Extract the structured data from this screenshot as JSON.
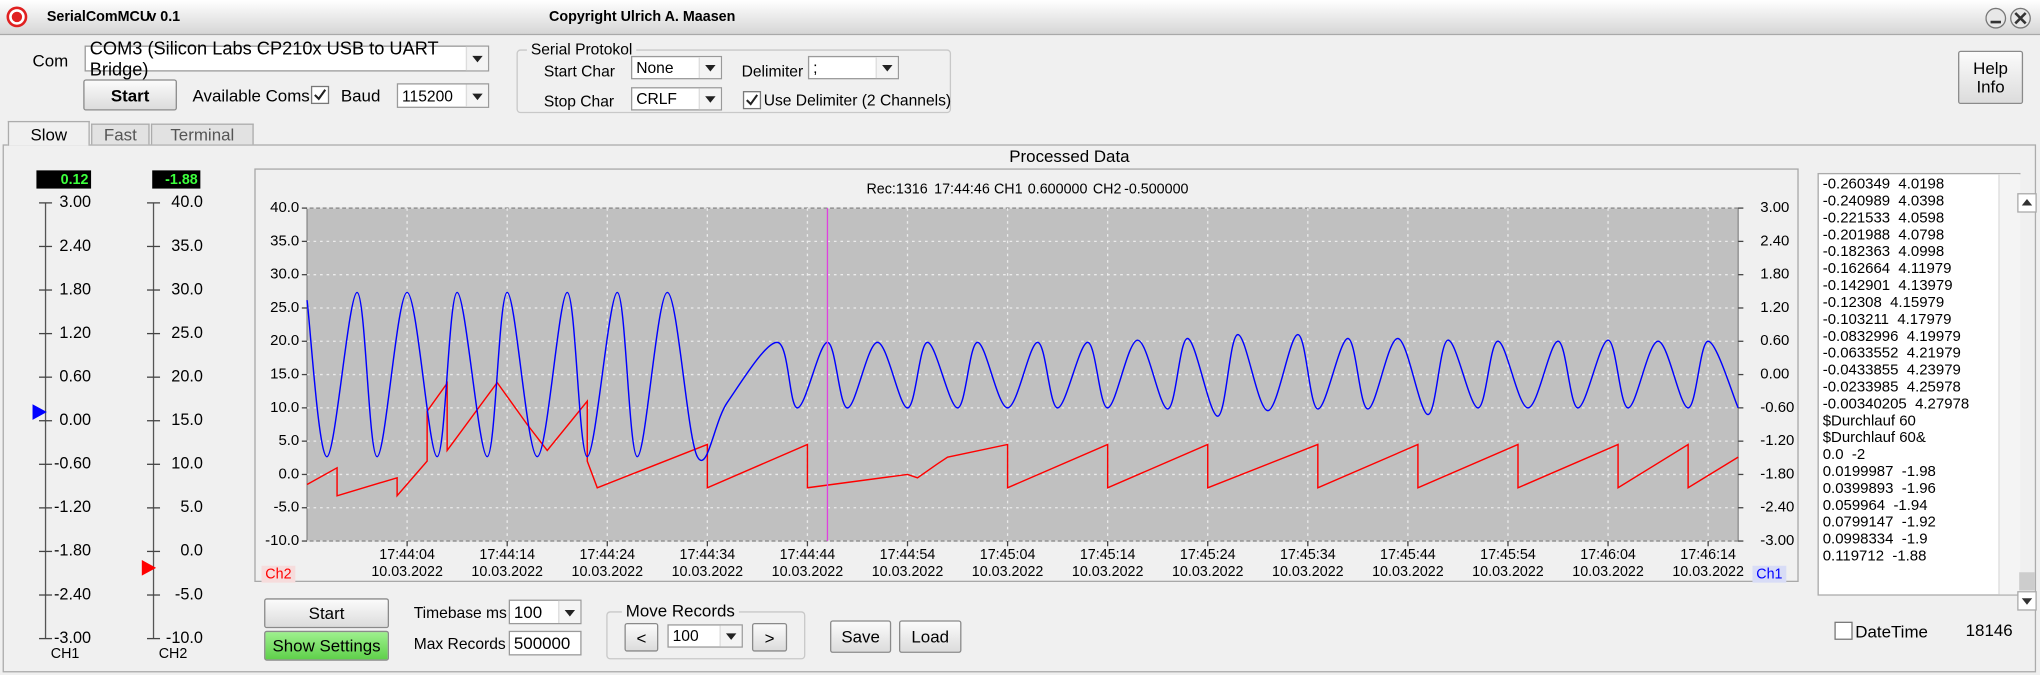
{
  "window": {
    "app": "SerialComMCU",
    "version": "v 0.1",
    "copyright": "Copyright Ulrich A. Maasen"
  },
  "connection": {
    "com_label": "Com",
    "com_port": "COM3 (Silicon Labs CP210x USB to UART Bridge)",
    "start_button": "Start",
    "available_coms": "Available Coms",
    "baud_label": "Baud",
    "baud": "115200"
  },
  "protocol": {
    "group": "Serial Protokol",
    "start_char_label": "Start Char",
    "start_char": "None",
    "stop_char_label": "Stop Char",
    "stop_char": "CRLF",
    "delimiter_label": "Delimiter",
    "delimiter": ";",
    "use_delimiter": "Use Delimiter (2 Channels)"
  },
  "help_button": {
    "line1": "Help",
    "line2": "Info"
  },
  "tabs": [
    "Slow",
    "Fast",
    "Terminal"
  ],
  "gauges": [
    {
      "label": "CH1",
      "readout": 0.12,
      "color": "#0000ff",
      "ylim": [
        -3,
        3
      ],
      "yticks": [
        {
          "value": 3,
          "label": "3.00"
        },
        {
          "value": 2.4,
          "label": "2.40"
        },
        {
          "value": 1.8,
          "label": "1.80"
        },
        {
          "value": 1.2,
          "label": "1.20"
        },
        {
          "value": 0.6,
          "label": "0.60"
        },
        {
          "value": 0,
          "label": "0.00"
        },
        {
          "value": -0.6,
          "label": "-0.60"
        },
        {
          "value": -1.2,
          "label": "-1.20"
        },
        {
          "value": -1.8,
          "label": "-1.80"
        },
        {
          "value": -2.4,
          "label": "-2.40"
        },
        {
          "value": -3,
          "label": "-3.00"
        }
      ]
    },
    {
      "label": "CH2",
      "readout": -1.88,
      "color": "#ff0000",
      "ylim": [
        -10,
        40
      ],
      "yticks": [
        {
          "value": 40,
          "label": "40.0"
        },
        {
          "value": 35,
          "label": "35.0"
        },
        {
          "value": 30,
          "label": "30.0"
        },
        {
          "value": 25,
          "label": "25.0"
        },
        {
          "value": 20,
          "label": "20.0"
        },
        {
          "value": 15,
          "label": "15.0"
        },
        {
          "value": 10,
          "label": "10.0"
        },
        {
          "value": 5,
          "label": "5.0"
        },
        {
          "value": 0,
          "label": "0.0"
        },
        {
          "value": -5,
          "label": "-5.0"
        },
        {
          "value": -10,
          "label": "-10.0"
        }
      ]
    }
  ],
  "chart_data": {
    "type": "line",
    "title": "Processed Data",
    "cursor": {
      "record": "Rec:1316",
      "time": "17:44:46",
      "ch1_label": "CH1",
      "ch1_value": "0.600000",
      "ch2_label": "CH2",
      "ch2_value": "-0.500000",
      "color": "#e040e0"
    },
    "xlim": [
      "17:43:54",
      "17:46:17"
    ],
    "xticks": [
      "17:44:04",
      "17:44:14",
      "17:44:24",
      "17:44:34",
      "17:44:44",
      "17:44:54",
      "17:45:04",
      "17:45:14",
      "17:45:24",
      "17:45:34",
      "17:45:44",
      "17:45:54",
      "17:46:04",
      "17:46:14"
    ],
    "xtick_date": "10.03.2022",
    "ylim": [
      -10,
      40
    ],
    "yticks": [
      {
        "value": 40,
        "label": "40.0"
      },
      {
        "value": 35,
        "label": "35.0"
      },
      {
        "value": 30,
        "label": "30.0"
      },
      {
        "value": 25,
        "label": "25.0"
      },
      {
        "value": 20,
        "label": "20.0"
      },
      {
        "value": 15,
        "label": "15.0"
      },
      {
        "value": 10,
        "label": "10.0"
      },
      {
        "value": 5,
        "label": "5.0"
      },
      {
        "value": 0,
        "label": "0.0"
      },
      {
        "value": -5,
        "label": "-5.0"
      },
      {
        "value": -10,
        "label": "-10.0"
      }
    ],
    "y2lim": [
      -3,
      3
    ],
    "y2ticks": [
      {
        "value": 3,
        "label": "3.00"
      },
      {
        "value": 2.4,
        "label": "2.40"
      },
      {
        "value": 1.8,
        "label": "1.80"
      },
      {
        "value": 1.2,
        "label": "1.20"
      },
      {
        "value": 0.6,
        "label": "0.60"
      },
      {
        "value": 0,
        "label": "0.00"
      },
      {
        "value": -0.6,
        "label": "-0.60"
      },
      {
        "value": -1.2,
        "label": "-1.20"
      },
      {
        "value": -1.8,
        "label": "-1.80"
      },
      {
        "value": -2.4,
        "label": "-2.40"
      },
      {
        "value": -3,
        "label": "-3.00"
      }
    ],
    "grid": true,
    "series": [
      {
        "name": "Ch2",
        "color": "#ff0000",
        "axis": "y",
        "smooth": false,
        "x": [
          "17:43:54",
          "17:43:57",
          "17:43:57",
          "17:44:03",
          "17:44:03",
          "17:44:06",
          "17:44:06",
          "17:44:08",
          "17:44:08",
          "17:44:13",
          "17:44:16",
          "17:44:18",
          "17:44:22",
          "17:44:22",
          "17:44:23",
          "17:44:34",
          "17:44:34",
          "17:44:44",
          "17:44:44",
          "17:44:54",
          "17:44:55",
          "17:44:57",
          "17:44:58",
          "17:45:04",
          "17:45:04",
          "17:45:14",
          "17:45:14",
          "17:45:24",
          "17:45:24",
          "17:45:35",
          "17:45:35",
          "17:45:45",
          "17:45:45",
          "17:45:55",
          "17:45:55",
          "17:46:05",
          "17:46:05",
          "17:46:12",
          "17:46:12",
          "17:46:17"
        ],
        "values": [
          -1.5,
          1.0,
          -3.2,
          -0.5,
          -3.2,
          2.0,
          9.5,
          13.7,
          3.6,
          13.8,
          7.5,
          3.6,
          11.0,
          2.0,
          -2.0,
          4.5,
          -2.0,
          4.5,
          -2.0,
          0.0,
          -0.5,
          1.6,
          2.6,
          4.5,
          -2.0,
          4.5,
          -2.0,
          4.5,
          -2.0,
          4.5,
          -2.0,
          4.5,
          -2.0,
          4.5,
          -2.0,
          4.5,
          -2.0,
          4.5,
          -2.0,
          2.6
        ]
      },
      {
        "name": "Ch1",
        "color": "#0000ff",
        "axis": "y2",
        "smooth": true,
        "x": [
          "17:43:54",
          "17:43:56",
          "17:43:59",
          "17:44:01",
          "17:44:04",
          "17:44:07",
          "17:44:09",
          "17:44:12",
          "17:44:14",
          "17:44:17",
          "17:44:20",
          "17:44:22",
          "17:44:25",
          "17:44:27",
          "17:44:30",
          "17:44:33",
          "17:44:36",
          "17:44:41",
          "17:44:43",
          "17:44:46",
          "17:44:48",
          "17:44:51",
          "17:44:54",
          "17:44:56",
          "17:44:59",
          "17:45:01",
          "17:45:04",
          "17:45:07",
          "17:45:09",
          "17:45:12",
          "17:45:14",
          "17:45:17",
          "17:45:20",
          "17:45:22",
          "17:45:25",
          "17:45:27",
          "17:45:30",
          "17:45:33",
          "17:45:35",
          "17:45:38",
          "17:45:40",
          "17:45:43",
          "17:45:46",
          "17:45:48",
          "17:45:51",
          "17:45:53",
          "17:45:56",
          "17:45:59",
          "17:46:01",
          "17:46:04",
          "17:46:06",
          "17:46:09",
          "17:46:12",
          "17:46:14",
          "17:46:17"
        ],
        "values": [
          1.34,
          -1.48,
          1.48,
          -1.48,
          1.48,
          -1.48,
          1.48,
          -1.48,
          1.48,
          -1.48,
          1.48,
          -1.48,
          1.48,
          -1.48,
          1.48,
          -1.48,
          -0.5,
          0.58,
          -0.6,
          0.58,
          -0.6,
          0.58,
          -0.6,
          0.58,
          -0.6,
          0.58,
          -0.6,
          0.58,
          -0.6,
          0.58,
          -0.6,
          0.62,
          -0.62,
          0.65,
          -0.75,
          0.72,
          -0.65,
          0.72,
          -0.62,
          0.65,
          -0.62,
          0.65,
          -0.72,
          0.62,
          -0.6,
          0.6,
          -0.6,
          0.6,
          -0.6,
          0.62,
          -0.6,
          0.6,
          -0.6,
          0.6,
          -0.6
        ]
      }
    ]
  },
  "controls": {
    "start_button": "Start",
    "show_settings": "Show Settings",
    "timebase_label": "Timebase ms",
    "timebase": "100",
    "max_records_label": "Max Records",
    "max_records": "500000",
    "move_group": "Move Records",
    "prev": "<",
    "step": "100",
    "next": ">",
    "save": "Save",
    "load": "Load"
  },
  "log": {
    "lines": [
      "-0.260349  4.0198",
      "-0.240989  4.0398",
      "-0.221533  4.0598",
      "-0.201988  4.0798",
      "-0.182363  4.0998",
      "-0.162664  4.11979",
      "-0.142901  4.13979",
      "-0.12308  4.15979",
      "-0.103211  4.17979",
      "-0.0832996  4.19979",
      "-0.0633552  4.21979",
      "-0.0433855  4.23979",
      "-0.0233985  4.25978",
      "-0.00340205  4.27978",
      "$Durchlauf 60",
      "$Durchlauf 60&",
      "0.0  -2",
      "0.0199987  -1.98",
      "0.0399893  -1.96",
      "0.059964  -1.94",
      "0.0799147  -1.92",
      "0.0998334  -1.9",
      "0.119712  -1.88"
    ],
    "datetime_label": "DateTime",
    "count": "18146"
  }
}
